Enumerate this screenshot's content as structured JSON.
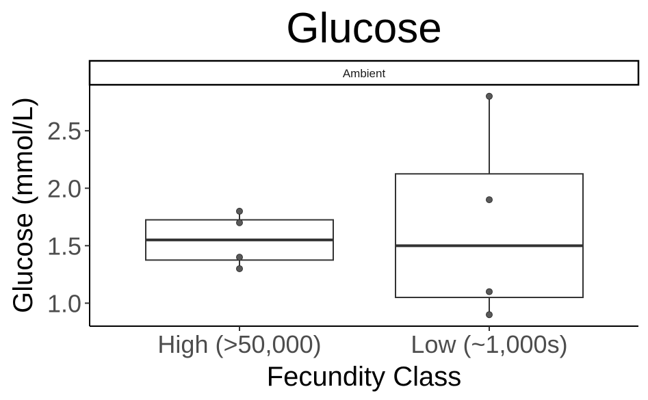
{
  "chart_data": {
    "type": "box",
    "title": "Glucose",
    "facet": "Ambient",
    "xlabel": "Fecundity Class",
    "ylabel": "Glucose (mmol/L)",
    "categories": [
      "High (>50,000)",
      "Low (~1,000s)"
    ],
    "ylim": [
      0.8,
      2.9
    ],
    "yticks": [
      1.0,
      1.5,
      2.0,
      2.5
    ],
    "ytick_labels": [
      "1.0",
      "1.5",
      "2.0",
      "2.5"
    ],
    "boxes": [
      {
        "category": "High (>50,000)",
        "whisker_low": 1.3,
        "q1": 1.375,
        "median": 1.55,
        "q3": 1.725,
        "whisker_high": 1.8
      },
      {
        "category": "Low (~1,000s)",
        "whisker_low": 0.9,
        "q1": 1.05,
        "median": 1.5,
        "q3": 2.125,
        "whisker_high": 2.8
      }
    ],
    "points": [
      {
        "category": "High (>50,000)",
        "values": [
          1.3,
          1.4,
          1.7,
          1.8
        ]
      },
      {
        "category": "Low (~1,000s)",
        "values": [
          0.9,
          1.1,
          1.9,
          2.8
        ]
      }
    ],
    "grid": false,
    "box_color": "#333333",
    "point_color": "#595959"
  }
}
